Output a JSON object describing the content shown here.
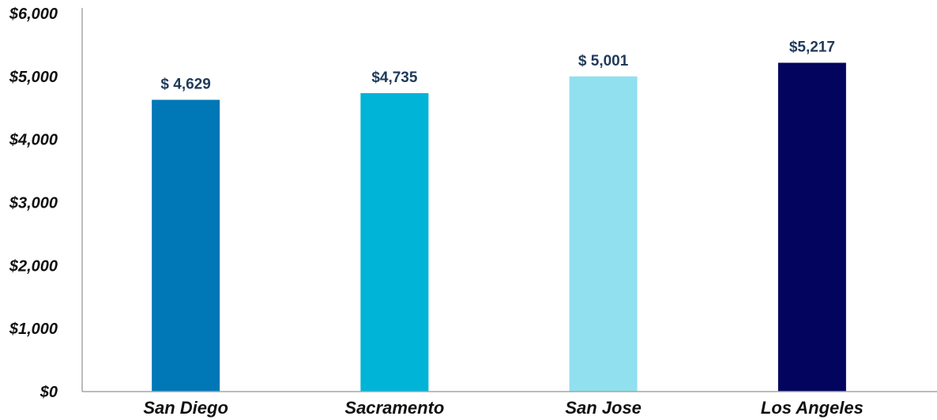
{
  "chart_data": {
    "type": "bar",
    "categories": [
      "San Diego",
      "Sacramento",
      "San Jose",
      "Los Angeles"
    ],
    "values": [
      4629,
      4735,
      5001,
      5217
    ],
    "data_labels": [
      "$ 4,629",
      "$4,735",
      "$ 5,001",
      "$5,217"
    ],
    "colors": [
      "#0077b6",
      "#00b4d8",
      "#90e0ef",
      "#03045e"
    ],
    "ylim": [
      0,
      6000
    ],
    "yticks": [
      0,
      1000,
      2000,
      3000,
      4000,
      5000,
      6000
    ],
    "ytick_labels": [
      "$0",
      "$1,000",
      "$2,000",
      "$3,000",
      "$4,000",
      "$5,000",
      "$6,000"
    ],
    "title": "",
    "xlabel": "",
    "ylabel": "",
    "grid": false,
    "legend": "none"
  }
}
